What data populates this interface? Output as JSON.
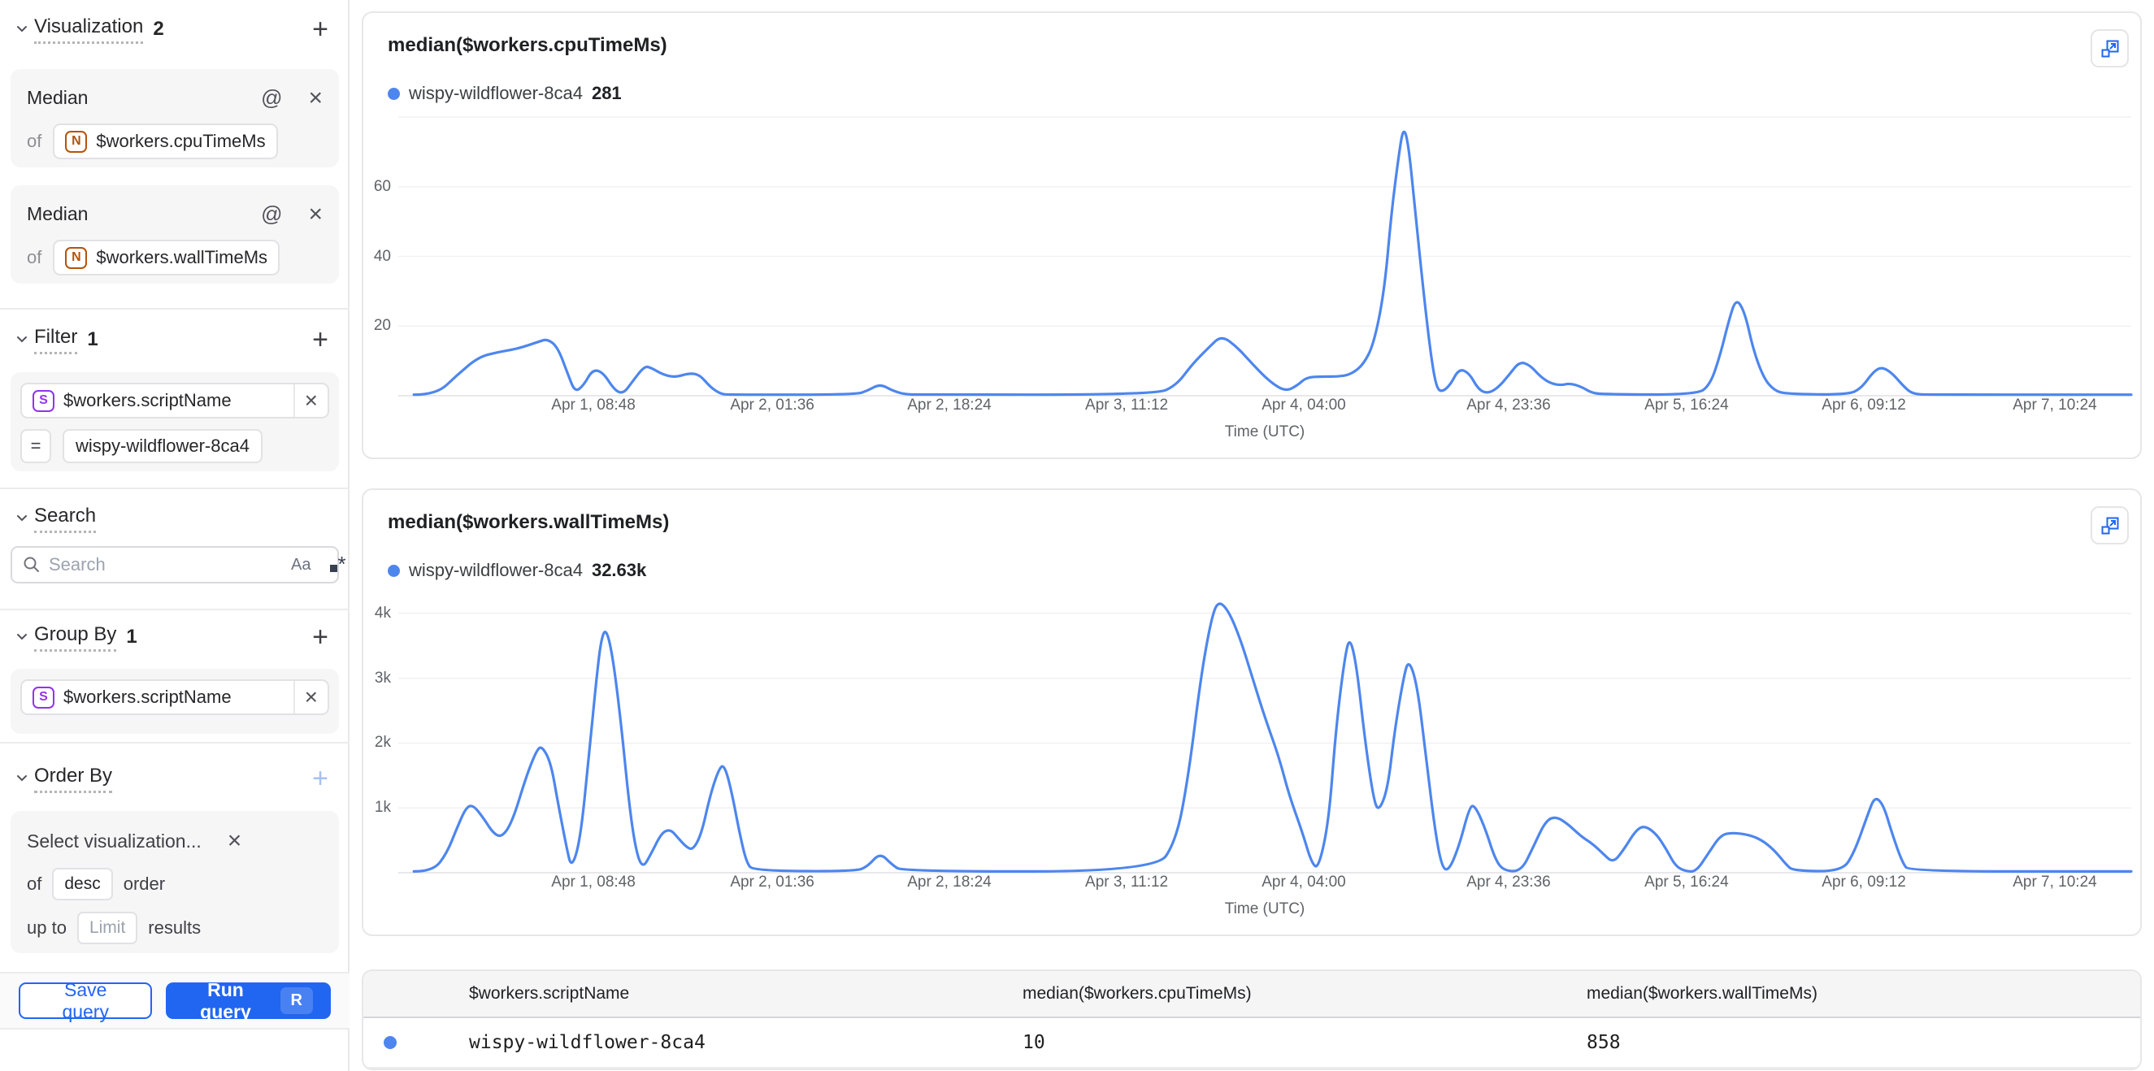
{
  "colors": {
    "accent": "#2166f0",
    "line": "#4d86ee",
    "grid": "#f1f1f1",
    "axis": "#e0e0e3"
  },
  "sidebar": {
    "visualization": {
      "label": "Visualization",
      "count": "2",
      "add": "+",
      "items": [
        {
          "agg": "Median",
          "of": "of",
          "type_letter": "N",
          "field": "$workers.cpuTimeMs"
        },
        {
          "agg": "Median",
          "of": "of",
          "type_letter": "N",
          "field": "$workers.wallTimeMs"
        }
      ]
    },
    "filter": {
      "label": "Filter",
      "count": "1",
      "add": "+",
      "type_letter": "S",
      "field": "$workers.scriptName",
      "operator": "=",
      "value": "wispy-wildflower-8ca4"
    },
    "search": {
      "label": "Search",
      "placeholder": "Search",
      "case_label": "Aa"
    },
    "group_by": {
      "label": "Group By",
      "count": "1",
      "add": "+",
      "type_letter": "S",
      "field": "$workers.scriptName"
    },
    "order_by": {
      "label": "Order By",
      "add": "+",
      "placeholder": "Select visualization...",
      "of": "of",
      "direction": "desc",
      "order_word": "order",
      "up_to": "up to",
      "limit_placeholder": "Limit",
      "results_word": "results"
    },
    "buttons": {
      "save": "Save query",
      "run": "Run query",
      "shortcut": "R"
    }
  },
  "chart_data": [
    {
      "type": "line",
      "title": "median($workers.cpuTimeMs)",
      "xlabel": "Time (UTC)",
      "legend": {
        "name": "wispy-wildflower-8ca4",
        "value": "281"
      },
      "ylim": [
        0,
        80
      ],
      "grid": true,
      "legend_position": "top-left",
      "yticks": [
        {
          "v": 20,
          "label": "20"
        },
        {
          "v": 40,
          "label": "40"
        },
        {
          "v": 60,
          "label": "60"
        },
        {
          "v": 80,
          "label": ""
        }
      ],
      "xticks": [
        {
          "f": 0.1126,
          "label": "Apr 1, 08:48"
        },
        {
          "f": 0.2158,
          "label": "Apr 2, 01:36"
        },
        {
          "f": 0.318,
          "label": "Apr 2, 18:24"
        },
        {
          "f": 0.4203,
          "label": "Apr 3, 11:12"
        },
        {
          "f": 0.5225,
          "label": "Apr 4, 04:00"
        },
        {
          "f": 0.6407,
          "label": "Apr 4, 23:36"
        },
        {
          "f": 0.7434,
          "label": "Apr 5, 16:24"
        },
        {
          "f": 0.8457,
          "label": "Apr 6, 09:12"
        },
        {
          "f": 0.9559,
          "label": "Apr 7, 10:24"
        }
      ],
      "series": [
        [
          0.009,
          0.3
        ],
        [
          0.022,
          0.3
        ],
        [
          0.034,
          6
        ],
        [
          0.046,
          11
        ],
        [
          0.057,
          12.5
        ],
        [
          0.069,
          13.5
        ],
        [
          0.081,
          15.5
        ],
        [
          0.086,
          16.3
        ],
        [
          0.092,
          14
        ],
        [
          0.098,
          6
        ],
        [
          0.102,
          1
        ],
        [
          0.107,
          3
        ],
        [
          0.112,
          7.5
        ],
        [
          0.118,
          6.8
        ],
        [
          0.125,
          1.5
        ],
        [
          0.13,
          0.6
        ],
        [
          0.135,
          4
        ],
        [
          0.142,
          8.5
        ],
        [
          0.146,
          8
        ],
        [
          0.153,
          6
        ],
        [
          0.16,
          5.3
        ],
        [
          0.168,
          6.5
        ],
        [
          0.174,
          6
        ],
        [
          0.18,
          2.5
        ],
        [
          0.186,
          0.5
        ],
        [
          0.191,
          0.3
        ],
        [
          0.264,
          0.3
        ],
        [
          0.271,
          1.5
        ],
        [
          0.278,
          3.4
        ],
        [
          0.285,
          1.5
        ],
        [
          0.292,
          0.4
        ],
        [
          0.301,
          0.3
        ],
        [
          0.437,
          0.3
        ],
        [
          0.449,
          3
        ],
        [
          0.458,
          9
        ],
        [
          0.468,
          14
        ],
        [
          0.475,
          17.3
        ],
        [
          0.484,
          14
        ],
        [
          0.493,
          9
        ],
        [
          0.503,
          4
        ],
        [
          0.512,
          1.2
        ],
        [
          0.519,
          3
        ],
        [
          0.524,
          5.3
        ],
        [
          0.533,
          5.5
        ],
        [
          0.543,
          5.5
        ],
        [
          0.55,
          6.2
        ],
        [
          0.557,
          9
        ],
        [
          0.563,
          15
        ],
        [
          0.569,
          30
        ],
        [
          0.573,
          52
        ],
        [
          0.577,
          68
        ],
        [
          0.58,
          77.5
        ],
        [
          0.583,
          72
        ],
        [
          0.587,
          52
        ],
        [
          0.592,
          28
        ],
        [
          0.596,
          11
        ],
        [
          0.599,
          2.5
        ],
        [
          0.602,
          1
        ],
        [
          0.607,
          3
        ],
        [
          0.612,
          7.8
        ],
        [
          0.618,
          6.5
        ],
        [
          0.623,
          2
        ],
        [
          0.628,
          0.6
        ],
        [
          0.634,
          2
        ],
        [
          0.641,
          6
        ],
        [
          0.647,
          9.8
        ],
        [
          0.653,
          8.8
        ],
        [
          0.659,
          5.5
        ],
        [
          0.665,
          3.5
        ],
        [
          0.671,
          3
        ],
        [
          0.676,
          3.6
        ],
        [
          0.683,
          2.5
        ],
        [
          0.688,
          1
        ],
        [
          0.694,
          0.4
        ],
        [
          0.749,
          0.3
        ],
        [
          0.757,
          3
        ],
        [
          0.763,
          12
        ],
        [
          0.768,
          22
        ],
        [
          0.772,
          28
        ],
        [
          0.777,
          24
        ],
        [
          0.782,
          13
        ],
        [
          0.788,
          5
        ],
        [
          0.794,
          1.5
        ],
        [
          0.801,
          0.5
        ],
        [
          0.836,
          0.3
        ],
        [
          0.844,
          2
        ],
        [
          0.851,
          6.8
        ],
        [
          0.856,
          8.3
        ],
        [
          0.862,
          6.5
        ],
        [
          0.869,
          2.5
        ],
        [
          0.874,
          0.5
        ],
        [
          0.883,
          0.3
        ],
        [
          1.0,
          0.3
        ]
      ]
    },
    {
      "type": "line",
      "title": "median($workers.wallTimeMs)",
      "xlabel": "Time (UTC)",
      "legend": {
        "name": "wispy-wildflower-8ca4",
        "value": "32.63k"
      },
      "ylim": [
        0,
        4300
      ],
      "grid": true,
      "legend_position": "top-left",
      "yticks": [
        {
          "v": 1000,
          "label": "1k"
        },
        {
          "v": 2000,
          "label": "2k"
        },
        {
          "v": 3000,
          "label": "3k"
        },
        {
          "v": 4000,
          "label": "4k"
        }
      ],
      "xticks": [
        {
          "f": 0.1126,
          "label": "Apr 1, 08:48"
        },
        {
          "f": 0.2158,
          "label": "Apr 2, 01:36"
        },
        {
          "f": 0.318,
          "label": "Apr 2, 18:24"
        },
        {
          "f": 0.4203,
          "label": "Apr 3, 11:12"
        },
        {
          "f": 0.5225,
          "label": "Apr 4, 04:00"
        },
        {
          "f": 0.6407,
          "label": "Apr 4, 23:36"
        },
        {
          "f": 0.7434,
          "label": "Apr 5, 16:24"
        },
        {
          "f": 0.8457,
          "label": "Apr 6, 09:12"
        },
        {
          "f": 0.9559,
          "label": "Apr 7, 10:24"
        }
      ],
      "series": [
        [
          0.009,
          20
        ],
        [
          0.02,
          20
        ],
        [
          0.028,
          300
        ],
        [
          0.034,
          700
        ],
        [
          0.039,
          1000
        ],
        [
          0.043,
          1050
        ],
        [
          0.049,
          850
        ],
        [
          0.055,
          600
        ],
        [
          0.06,
          550
        ],
        [
          0.066,
          800
        ],
        [
          0.074,
          1500
        ],
        [
          0.08,
          1900
        ],
        [
          0.083,
          1950
        ],
        [
          0.088,
          1700
        ],
        [
          0.092,
          1100
        ],
        [
          0.097,
          400
        ],
        [
          0.1,
          60
        ],
        [
          0.105,
          500
        ],
        [
          0.11,
          1800
        ],
        [
          0.114,
          2900
        ],
        [
          0.117,
          3600
        ],
        [
          0.12,
          3780
        ],
        [
          0.124,
          3300
        ],
        [
          0.129,
          2200
        ],
        [
          0.133,
          1100
        ],
        [
          0.137,
          350
        ],
        [
          0.141,
          60
        ],
        [
          0.146,
          300
        ],
        [
          0.152,
          620
        ],
        [
          0.157,
          670
        ],
        [
          0.161,
          550
        ],
        [
          0.166,
          400
        ],
        [
          0.17,
          350
        ],
        [
          0.175,
          600
        ],
        [
          0.18,
          1200
        ],
        [
          0.185,
          1600
        ],
        [
          0.188,
          1670
        ],
        [
          0.192,
          1300
        ],
        [
          0.197,
          600
        ],
        [
          0.201,
          150
        ],
        [
          0.205,
          30
        ],
        [
          0.264,
          20
        ],
        [
          0.271,
          100
        ],
        [
          0.278,
          310
        ],
        [
          0.285,
          120
        ],
        [
          0.291,
          20
        ],
        [
          0.437,
          20
        ],
        [
          0.449,
          500
        ],
        [
          0.456,
          1500
        ],
        [
          0.463,
          3000
        ],
        [
          0.469,
          3900
        ],
        [
          0.473,
          4200
        ],
        [
          0.479,
          4050
        ],
        [
          0.486,
          3600
        ],
        [
          0.493,
          3000
        ],
        [
          0.5,
          2400
        ],
        [
          0.508,
          1800
        ],
        [
          0.514,
          1200
        ],
        [
          0.522,
          600
        ],
        [
          0.527,
          150
        ],
        [
          0.531,
          60
        ],
        [
          0.537,
          800
        ],
        [
          0.541,
          2200
        ],
        [
          0.546,
          3300
        ],
        [
          0.549,
          3650
        ],
        [
          0.553,
          3200
        ],
        [
          0.558,
          2000
        ],
        [
          0.563,
          1100
        ],
        [
          0.566,
          950
        ],
        [
          0.571,
          1300
        ],
        [
          0.575,
          2200
        ],
        [
          0.58,
          3000
        ],
        [
          0.583,
          3300
        ],
        [
          0.588,
          2900
        ],
        [
          0.593,
          1800
        ],
        [
          0.598,
          700
        ],
        [
          0.602,
          100
        ],
        [
          0.606,
          20
        ],
        [
          0.612,
          400
        ],
        [
          0.618,
          1000
        ],
        [
          0.621,
          1050
        ],
        [
          0.627,
          700
        ],
        [
          0.633,
          200
        ],
        [
          0.638,
          30
        ],
        [
          0.648,
          20
        ],
        [
          0.655,
          400
        ],
        [
          0.662,
          800
        ],
        [
          0.668,
          870
        ],
        [
          0.675,
          750
        ],
        [
          0.683,
          550
        ],
        [
          0.689,
          450
        ],
        [
          0.695,
          300
        ],
        [
          0.701,
          150
        ],
        [
          0.707,
          350
        ],
        [
          0.714,
          650
        ],
        [
          0.719,
          730
        ],
        [
          0.726,
          600
        ],
        [
          0.732,
          350
        ],
        [
          0.737,
          100
        ],
        [
          0.743,
          20
        ],
        [
          0.749,
          20
        ],
        [
          0.756,
          300
        ],
        [
          0.763,
          580
        ],
        [
          0.77,
          620
        ],
        [
          0.78,
          580
        ],
        [
          0.787,
          500
        ],
        [
          0.794,
          350
        ],
        [
          0.801,
          120
        ],
        [
          0.805,
          30
        ],
        [
          0.833,
          20
        ],
        [
          0.84,
          300
        ],
        [
          0.848,
          900
        ],
        [
          0.852,
          1180
        ],
        [
          0.857,
          1050
        ],
        [
          0.862,
          600
        ],
        [
          0.868,
          150
        ],
        [
          0.872,
          20
        ],
        [
          1.0,
          20
        ]
      ]
    }
  ],
  "table": {
    "headers": [
      "$workers.scriptName",
      "median($workers.cpuTimeMs)",
      "median($workers.wallTimeMs)"
    ],
    "rows": [
      {
        "dot_color": "#4d86ee",
        "script": "wispy-wildflower-8ca4",
        "cpu": "10",
        "wall": "858"
      }
    ]
  }
}
